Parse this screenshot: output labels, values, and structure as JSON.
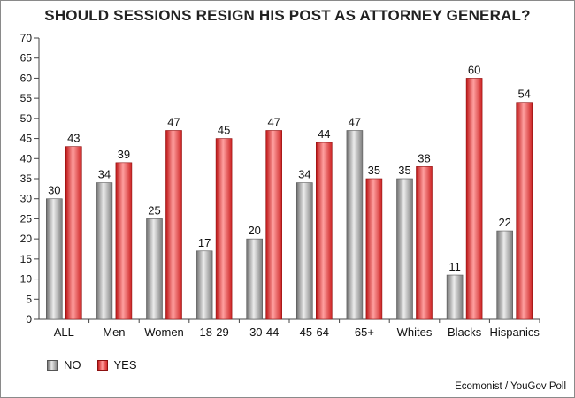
{
  "chart_data": {
    "type": "bar",
    "title": "SHOULD SESSIONS RESIGN HIS POST AS ATTORNEY GENERAL?",
    "categories": [
      "ALL",
      "Men",
      "Women",
      "18-29",
      "30-44",
      "45-64",
      "65+",
      "Whites",
      "Blacks",
      "Hispanics"
    ],
    "series": [
      {
        "name": "NO",
        "values": [
          30,
          34,
          25,
          17,
          20,
          34,
          47,
          35,
          11,
          22
        ],
        "color": "#a0a0a0"
      },
      {
        "name": "YES",
        "values": [
          43,
          39,
          47,
          45,
          47,
          44,
          35,
          38,
          60,
          54
        ],
        "color": "#e23b3b"
      }
    ],
    "ylim": [
      0,
      70
    ],
    "yticks": [
      0,
      5,
      10,
      15,
      20,
      25,
      30,
      35,
      40,
      45,
      50,
      55,
      60,
      65,
      70
    ],
    "grid": false,
    "legend_position": "bottom-left",
    "source": "Ecomonist / YouGov Poll"
  }
}
